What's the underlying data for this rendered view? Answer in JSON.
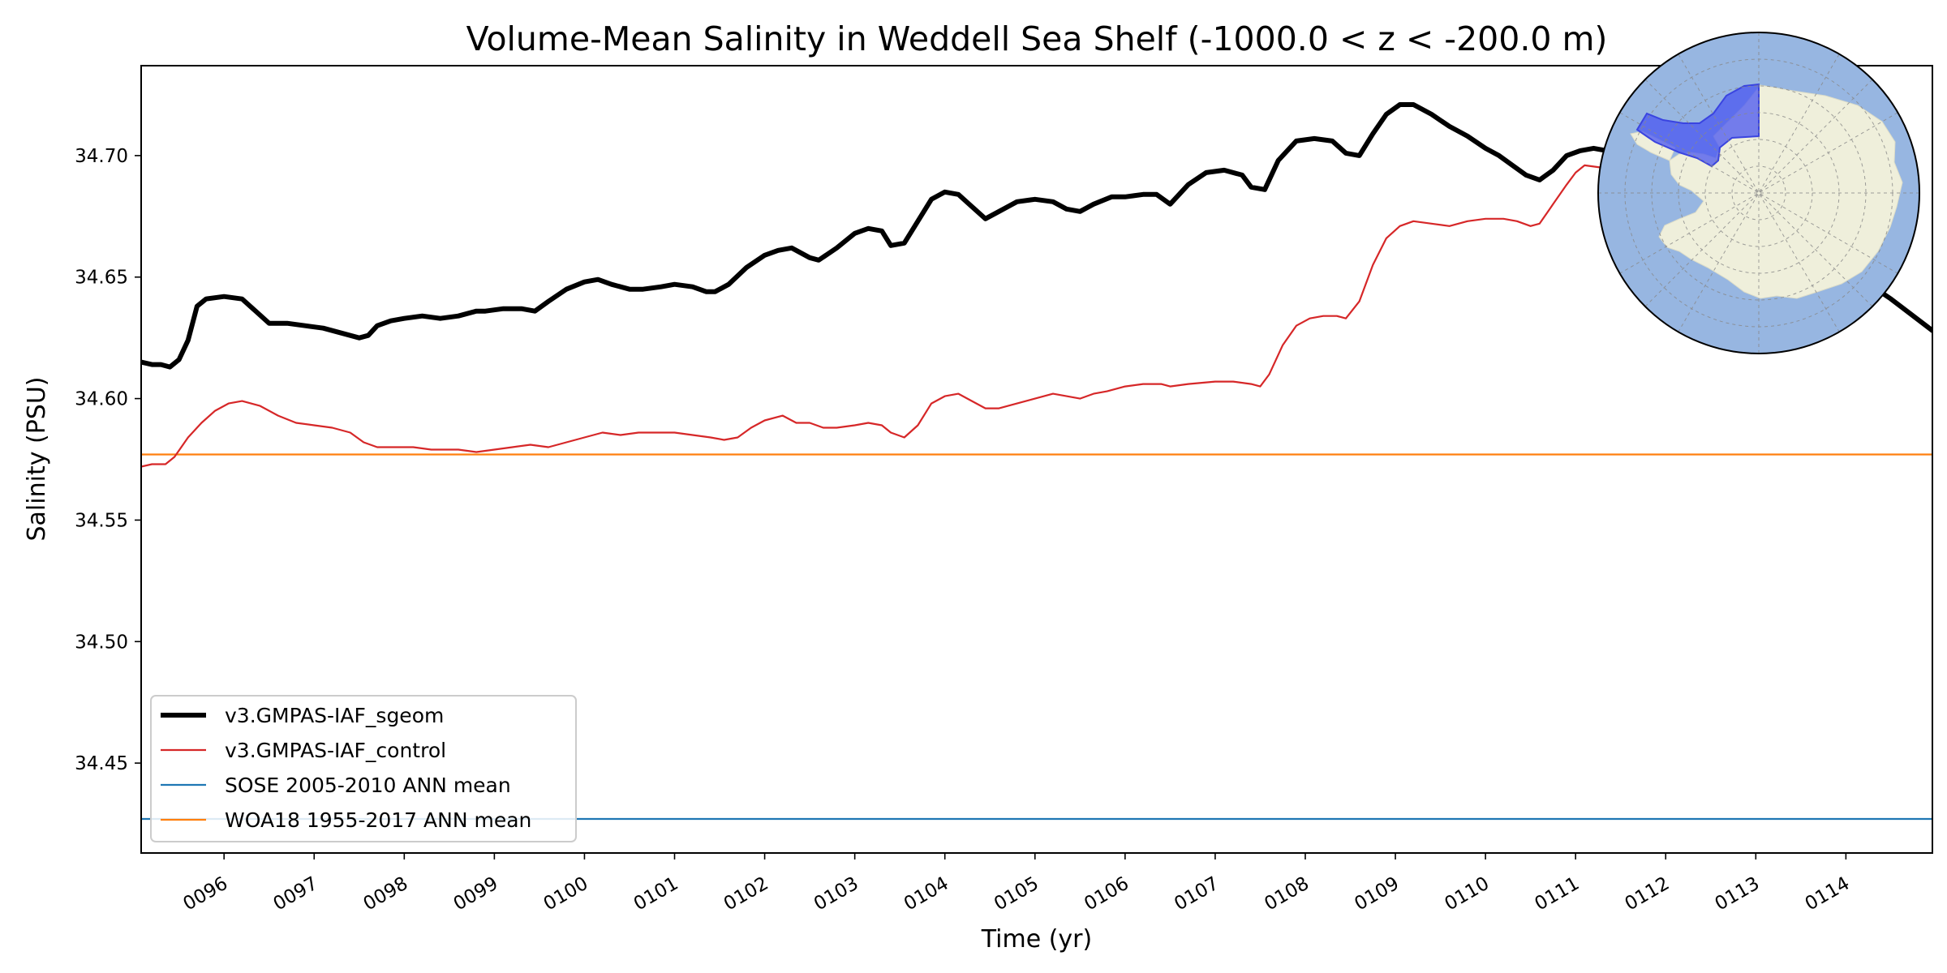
{
  "chart_data": {
    "type": "line",
    "title": "Volume-Mean Salinity in Weddell Sea Shelf (-1000.0 < z < -200.0 m)",
    "xlabel": "Time (yr)",
    "ylabel": "Salinity (PSU)",
    "xlim": [
      95.08,
      114.96
    ],
    "ylim": [
      34.413,
      34.737
    ],
    "x_tick_labels": [
      "0096",
      "0097",
      "0098",
      "0099",
      "0100",
      "0101",
      "0102",
      "0103",
      "0104",
      "0105",
      "0106",
      "0107",
      "0108",
      "0109",
      "0110",
      "0111",
      "0112",
      "0113",
      "0114"
    ],
    "x_tick_values": [
      96,
      97,
      98,
      99,
      100,
      101,
      102,
      103,
      104,
      105,
      106,
      107,
      108,
      109,
      110,
      111,
      112,
      113,
      114
    ],
    "y_ticks": [
      34.45,
      34.5,
      34.55,
      34.6,
      34.65,
      34.7
    ],
    "y_tick_labels": [
      "34.45",
      "34.50",
      "34.55",
      "34.60",
      "34.65",
      "34.70"
    ],
    "grid": false,
    "legend_position": "lower-left",
    "series": [
      {
        "name": "v3.GMPAS-IAF_sgeom",
        "color": "#000000",
        "style": "thick",
        "x": [
          95.08,
          95.2,
          95.3,
          95.4,
          95.5,
          95.6,
          95.7,
          95.8,
          96.0,
          96.2,
          96.35,
          96.5,
          96.7,
          96.9,
          97.1,
          97.3,
          97.5,
          97.6,
          97.7,
          97.85,
          98.0,
          98.2,
          98.4,
          98.6,
          98.7,
          98.8,
          98.9,
          99.1,
          99.3,
          99.45,
          99.6,
          99.8,
          100.0,
          100.15,
          100.3,
          100.5,
          100.65,
          100.85,
          101.0,
          101.2,
          101.35,
          101.45,
          101.6,
          101.8,
          102.0,
          102.15,
          102.3,
          102.5,
          102.6,
          102.8,
          103.0,
          103.15,
          103.3,
          103.4,
          103.55,
          103.7,
          103.85,
          104.0,
          104.15,
          104.3,
          104.45,
          104.6,
          104.8,
          105.0,
          105.2,
          105.35,
          105.5,
          105.65,
          105.85,
          106.0,
          106.2,
          106.35,
          106.5,
          106.7,
          106.9,
          107.1,
          107.3,
          107.4,
          107.55,
          107.7,
          107.9,
          108.1,
          108.3,
          108.45,
          108.6,
          108.75,
          108.9,
          109.05,
          109.2,
          109.4,
          109.6,
          109.8,
          110.0,
          110.15,
          110.3,
          110.45,
          110.6,
          110.75,
          110.9,
          111.05,
          111.2,
          111.5,
          112.5,
          113.0,
          113.3,
          113.7,
          114.1,
          114.5,
          114.96
        ],
        "y": [
          34.615,
          34.614,
          34.614,
          34.613,
          34.616,
          34.624,
          34.638,
          34.641,
          34.642,
          34.641,
          34.636,
          34.631,
          34.631,
          34.63,
          34.629,
          34.627,
          34.625,
          34.626,
          34.63,
          34.632,
          34.633,
          34.634,
          34.633,
          34.634,
          34.635,
          34.636,
          34.636,
          34.637,
          34.637,
          34.636,
          34.64,
          34.645,
          34.648,
          34.649,
          34.647,
          34.645,
          34.645,
          34.646,
          34.647,
          34.646,
          34.644,
          34.644,
          34.647,
          34.654,
          34.659,
          34.661,
          34.662,
          34.658,
          34.657,
          34.662,
          34.668,
          34.67,
          34.669,
          34.663,
          34.664,
          34.673,
          34.682,
          34.685,
          34.684,
          34.679,
          34.674,
          34.677,
          34.681,
          34.682,
          34.681,
          34.678,
          34.677,
          34.68,
          34.683,
          34.683,
          34.684,
          34.684,
          34.68,
          34.688,
          34.693,
          34.694,
          34.692,
          34.687,
          34.686,
          34.698,
          34.706,
          34.707,
          34.706,
          34.701,
          34.7,
          34.709,
          34.717,
          34.721,
          34.721,
          34.717,
          34.712,
          34.708,
          34.703,
          34.7,
          34.696,
          34.692,
          34.69,
          34.694,
          34.7,
          34.702,
          34.703,
          34.701,
          34.694,
          34.686,
          34.678,
          34.664,
          34.651,
          34.641,
          34.628
        ]
      },
      {
        "name": "v3.GMPAS-IAF_control",
        "color": "#d62728",
        "style": "thin",
        "x": [
          95.08,
          95.2,
          95.35,
          95.45,
          95.6,
          95.75,
          95.9,
          96.05,
          96.2,
          96.4,
          96.6,
          96.8,
          97.0,
          97.2,
          97.4,
          97.55,
          97.7,
          97.9,
          98.1,
          98.3,
          98.6,
          98.8,
          99.0,
          99.2,
          99.4,
          99.6,
          99.8,
          100.0,
          100.2,
          100.4,
          100.6,
          100.8,
          101.0,
          101.2,
          101.4,
          101.55,
          101.7,
          101.85,
          102.0,
          102.2,
          102.35,
          102.5,
          102.65,
          102.8,
          103.0,
          103.15,
          103.3,
          103.4,
          103.55,
          103.7,
          103.85,
          104.0,
          104.15,
          104.3,
          104.45,
          104.6,
          104.8,
          105.0,
          105.2,
          105.35,
          105.5,
          105.65,
          105.8,
          106.0,
          106.2,
          106.4,
          106.5,
          106.7,
          107.0,
          107.2,
          107.4,
          107.5,
          107.6,
          107.75,
          107.9,
          108.05,
          108.2,
          108.35,
          108.45,
          108.6,
          108.75,
          108.9,
          109.05,
          109.2,
          109.4,
          109.6,
          109.8,
          110.0,
          110.2,
          110.35,
          110.5,
          110.6,
          110.75,
          110.9,
          111.0,
          111.1,
          111.3,
          111.5
        ],
        "y": [
          34.572,
          34.573,
          34.573,
          34.576,
          34.584,
          34.59,
          34.595,
          34.598,
          34.599,
          34.597,
          34.593,
          34.59,
          34.589,
          34.588,
          34.586,
          34.582,
          34.58,
          34.58,
          34.58,
          34.579,
          34.579,
          34.578,
          34.579,
          34.58,
          34.581,
          34.58,
          34.582,
          34.584,
          34.586,
          34.585,
          34.586,
          34.586,
          34.586,
          34.585,
          34.584,
          34.583,
          34.584,
          34.588,
          34.591,
          34.593,
          34.59,
          34.59,
          34.588,
          34.588,
          34.589,
          34.59,
          34.589,
          34.586,
          34.584,
          34.589,
          34.598,
          34.601,
          34.602,
          34.599,
          34.596,
          34.596,
          34.598,
          34.6,
          34.602,
          34.601,
          34.6,
          34.602,
          34.603,
          34.605,
          34.606,
          34.606,
          34.605,
          34.606,
          34.607,
          34.607,
          34.606,
          34.605,
          34.61,
          34.622,
          34.63,
          34.633,
          34.634,
          34.634,
          34.633,
          34.64,
          34.655,
          34.666,
          34.671,
          34.673,
          34.672,
          34.671,
          34.673,
          34.674,
          34.674,
          34.673,
          34.671,
          34.672,
          34.68,
          34.688,
          34.693,
          34.696,
          34.695,
          34.69
        ]
      },
      {
        "name": "SOSE 2005-2010 ANN mean",
        "color": "#1f77b4",
        "style": "thin",
        "x": [
          95.08,
          114.96
        ],
        "y": [
          34.427,
          34.427
        ]
      },
      {
        "name": "WOA18 1955-2017 ANN mean",
        "color": "#ff7f0e",
        "style": "thin",
        "x": [
          95.08,
          114.96
        ],
        "y": [
          34.577,
          34.577
        ]
      }
    ],
    "inset_map": {
      "description_name": "antarctic-polar-inset-map",
      "ocean_color": "#97b6e1",
      "land_color": "#efefdb",
      "region_color": "#4a55f0"
    }
  }
}
